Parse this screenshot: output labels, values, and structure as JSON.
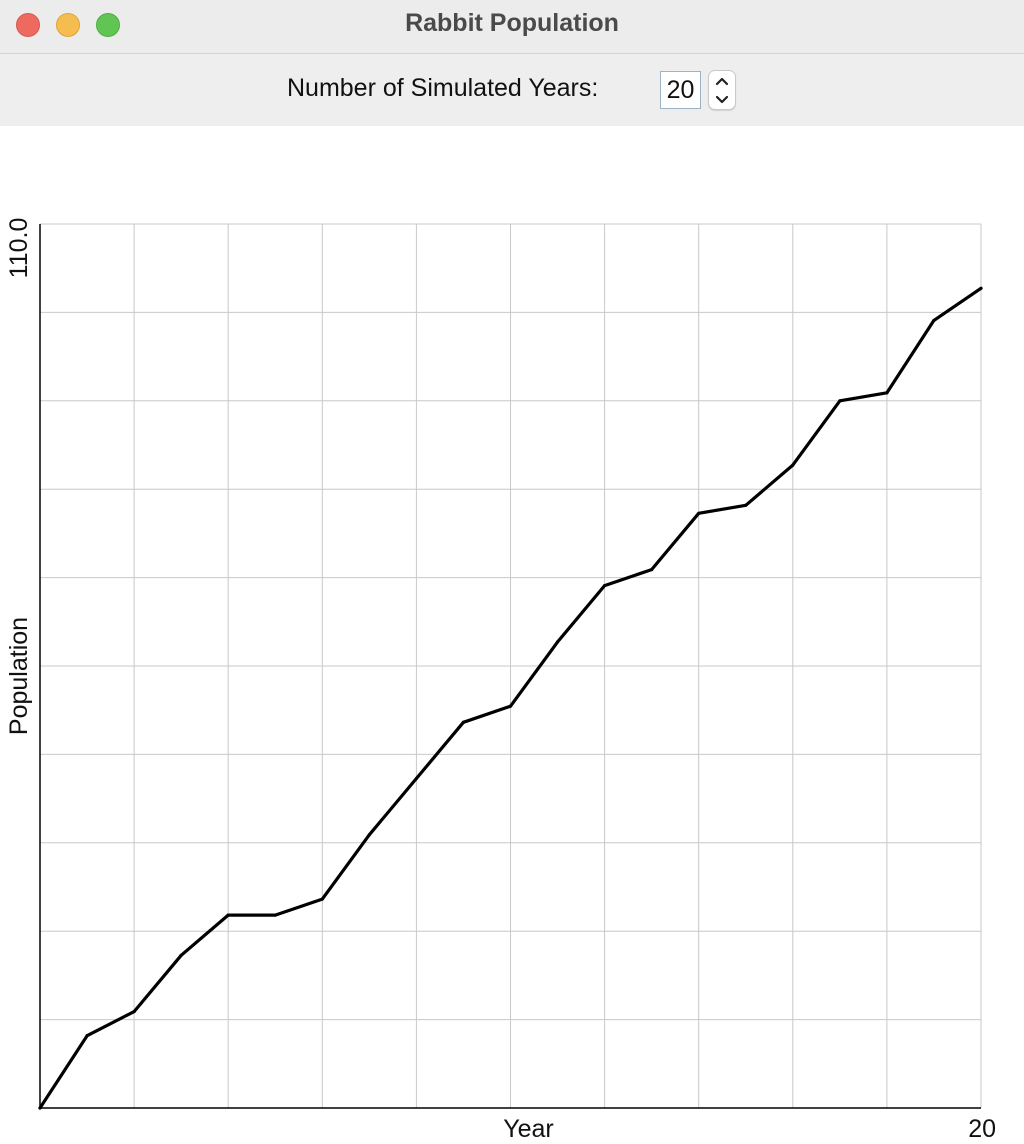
{
  "window": {
    "title": "Rabbit Population"
  },
  "controls": {
    "years_label": "Number of Simulated Years:",
    "years_value": "20"
  },
  "chart_data": {
    "type": "line",
    "xlabel": "Year",
    "ylabel": "Population",
    "x_max_label": "20",
    "y_max_label": "110.0",
    "xlim": [
      0,
      20
    ],
    "ylim": [
      0,
      110
    ],
    "grid": true,
    "x_grid_lines": 10,
    "y_grid_lines": 10,
    "x": [
      0,
      1,
      2,
      3,
      4,
      5,
      6,
      7,
      8,
      9,
      10,
      11,
      12,
      13,
      14,
      15,
      16,
      17,
      18,
      19,
      20
    ],
    "values": [
      0,
      9,
      12,
      19,
      24,
      24,
      26,
      34,
      41,
      48,
      50,
      58,
      65,
      67,
      74,
      75,
      80,
      88,
      89,
      98,
      102
    ],
    "line_color": "#000000",
    "grid_color": "#c8c8c8"
  }
}
